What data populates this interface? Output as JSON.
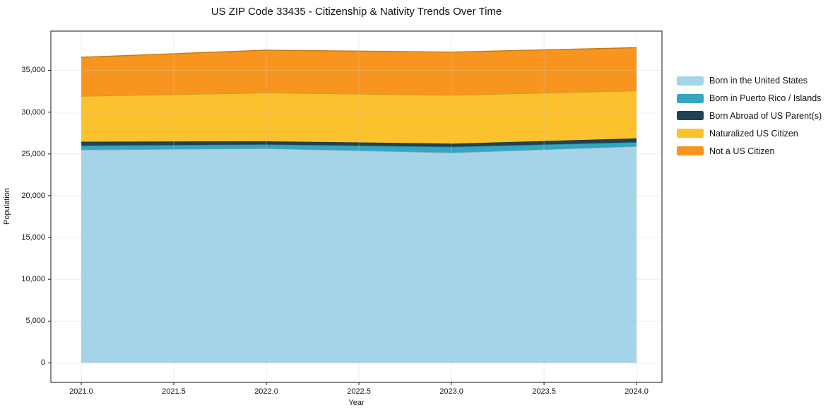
{
  "title": "US ZIP Code 33435 - Citizenship & Nativity Trends Over Time",
  "chart_data": {
    "type": "area",
    "stacked": true,
    "title": "US ZIP Code 33435 - Citizenship & Nativity Trends Over Time",
    "xlabel": "Year",
    "ylabel": "Population",
    "x": [
      2021,
      2022,
      2023,
      2024
    ],
    "series": [
      {
        "name": "Born in the United States",
        "color": "#a5d3e8",
        "values": [
          25500,
          25650,
          25150,
          25900
        ]
      },
      {
        "name": "Born in Puerto Rico / Islands",
        "color": "#35a6bf",
        "values": [
          500,
          480,
          700,
          500
        ]
      },
      {
        "name": "Born Abroad of US Parent(s)",
        "color": "#1f4254",
        "values": [
          460,
          380,
          380,
          460
        ]
      },
      {
        "name": "Naturalized US Citizen",
        "color": "#fcc22d",
        "values": [
          5450,
          5800,
          5800,
          5700
        ]
      },
      {
        "name": "Not a US Citizen",
        "color": "#f8951f",
        "values": [
          4650,
          5100,
          5150,
          5150
        ]
      }
    ],
    "totals": [
      36560,
      37410,
      37180,
      37710
    ],
    "x_tick_labels": [
      "2021.0",
      "2021.5",
      "2022.0",
      "2022.5",
      "2023.0",
      "2023.5",
      "2024.0"
    ],
    "x_tick_values": [
      2021,
      2021.5,
      2022,
      2022.5,
      2023,
      2023.5,
      2024
    ],
    "y_tick_labels": [
      "0",
      "5,000",
      "10,000",
      "15,000",
      "20,000",
      "25,000",
      "30,000",
      "35,000"
    ],
    "y_tick_values": [
      0,
      5000,
      10000,
      15000,
      20000,
      25000,
      30000,
      35000
    ],
    "xlim": [
      2020.836,
      2024.137
    ],
    "ylim": [
      -2325,
      39692
    ],
    "grid": true,
    "legend_position": "right",
    "colors": {
      "spine": "#2b2b2b",
      "grid": "#cccccc",
      "background": "#ffffff"
    }
  }
}
